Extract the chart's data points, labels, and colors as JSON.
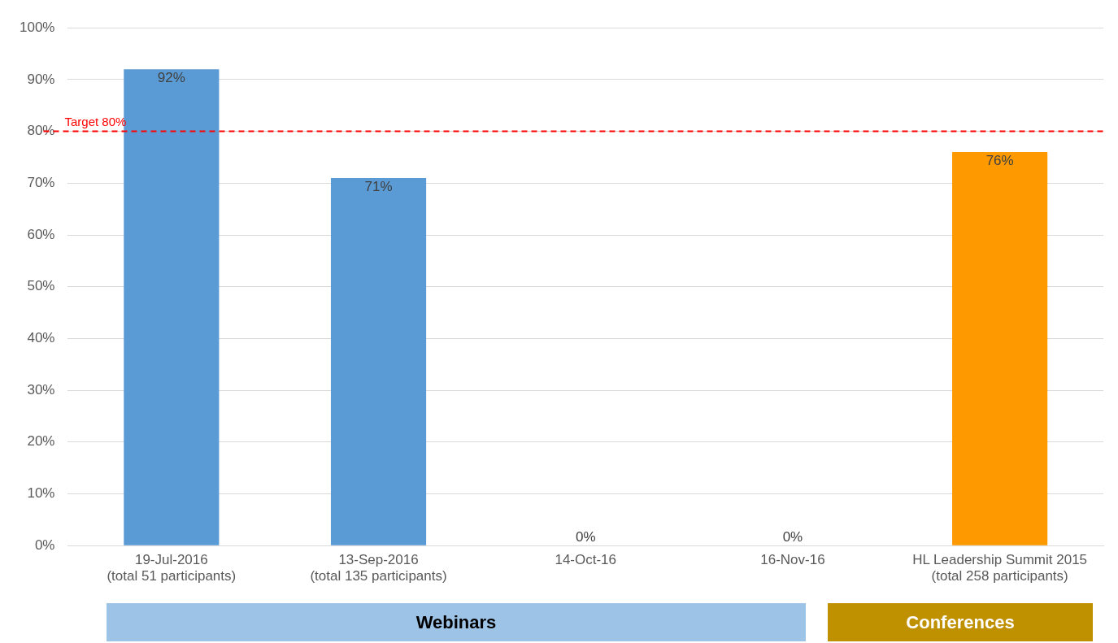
{
  "chart_data": {
    "type": "bar",
    "categories": [
      "19-Jul-2016\n(total 51 participants)",
      "13-Sep-2016\n(total 135 participants)",
      "14-Oct-16",
      "16-Nov-16",
      "HL Leadership Summit 2015\n(total 258 participants)"
    ],
    "values": [
      92,
      71,
      0,
      0,
      76
    ],
    "colors": [
      "#5b9bd5",
      "#5b9bd5",
      "#5b9bd5",
      "#5b9bd5",
      "#ff9900"
    ],
    "value_labels": [
      "92%",
      "71%",
      "0%",
      "0%",
      "76%"
    ],
    "ylim": [
      0,
      100
    ],
    "yticks": [
      {
        "value": 0,
        "label": "0%"
      },
      {
        "value": 10,
        "label": "10%"
      },
      {
        "value": 20,
        "label": "20%"
      },
      {
        "value": 30,
        "label": "30%"
      },
      {
        "value": 40,
        "label": "40%"
      },
      {
        "value": 50,
        "label": "50%"
      },
      {
        "value": 60,
        "label": "60%"
      },
      {
        "value": 70,
        "label": "70%"
      },
      {
        "value": 80,
        "label": "80%"
      },
      {
        "value": 90,
        "label": "90%"
      },
      {
        "value": 100,
        "label": "100%"
      }
    ],
    "grid": "y",
    "legend": false,
    "ref_lines": [
      {
        "axis": "y",
        "value": 80,
        "label": "Target 80%",
        "color": "#ff0000",
        "line_style": "dashed"
      }
    ],
    "annotations": [
      "Webinars",
      "Conferences"
    ]
  }
}
